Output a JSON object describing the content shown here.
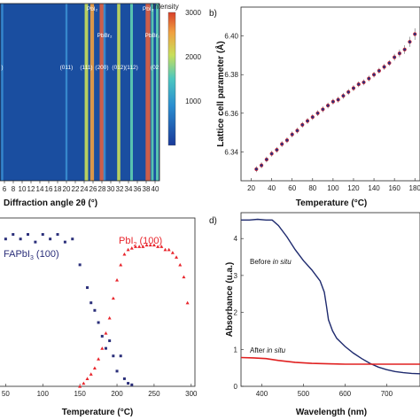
{
  "chart_data": [
    {
      "type": "heatmap",
      "xlabel": "Diffraction angle 2θ (°)",
      "xticks": [
        6,
        8,
        10,
        12,
        14,
        16,
        18,
        20,
        22,
        24,
        26,
        28,
        30,
        32,
        34,
        36,
        38,
        40
      ],
      "xlim": [
        5,
        41
      ],
      "colorbar": {
        "title": "Intensity",
        "ticks": [
          1000,
          2000,
          3000
        ],
        "range": [
          0,
          3000
        ]
      },
      "peaks": [
        {
          "angle": 20.0,
          "label": "(011)",
          "intensity": 300
        },
        {
          "angle": 24.5,
          "label": "(111)",
          "intensity": 1700
        },
        {
          "angle": 25.8,
          "label": "PbI₂",
          "intensity": 2000
        },
        {
          "angle": 28.0,
          "label": "(200)",
          "intensity": 2800
        },
        {
          "angle": 28.6,
          "label": "PbBr₂",
          "intensity": 500
        },
        {
          "angle": 31.8,
          "label": "(012)",
          "intensity": 1400
        },
        {
          "angle": 34.7,
          "label": "(112)",
          "intensity": 900
        },
        {
          "angle": 38.4,
          "label": "PbI₂",
          "intensity": 3000
        },
        {
          "angle": 39.4,
          "label": "PbBr₂",
          "intensity": 700
        },
        {
          "angle": 40.5,
          "label": "(022)",
          "intensity": 1000
        },
        {
          "angle": 5.5,
          "label": ")",
          "intensity": 300
        }
      ]
    },
    {
      "type": "scatter",
      "panel": "b)",
      "xlabel": "Temperature (°C)",
      "ylabel": "Lattice cell parameter (Å)",
      "xticks": [
        20,
        40,
        60,
        80,
        100,
        120,
        140,
        160,
        180
      ],
      "yticks": [
        6.34,
        6.36,
        6.38,
        6.4
      ],
      "xlim": [
        10,
        185
      ],
      "ylim": [
        6.325,
        6.415
      ],
      "x": [
        25,
        30,
        35,
        40,
        45,
        50,
        55,
        60,
        65,
        70,
        75,
        80,
        85,
        90,
        95,
        100,
        105,
        110,
        115,
        120,
        125,
        130,
        135,
        140,
        145,
        150,
        155,
        160,
        165,
        170,
        175,
        180
      ],
      "y": [
        6.331,
        6.333,
        6.336,
        6.339,
        6.341,
        6.344,
        6.346,
        6.349,
        6.351,
        6.354,
        6.356,
        6.358,
        6.36,
        6.362,
        6.364,
        6.366,
        6.367,
        6.369,
        6.371,
        6.373,
        6.375,
        6.376,
        6.378,
        6.38,
        6.382,
        6.384,
        6.386,
        6.389,
        6.391,
        6.393,
        6.397,
        6.401
      ],
      "errors": [
        0.0015,
        0.0015,
        0.0015,
        0.0015,
        0.0015,
        0.0015,
        0.0015,
        0.0015,
        0.0015,
        0.0015,
        0.0015,
        0.0015,
        0.0015,
        0.0015,
        0.0015,
        0.0015,
        0.0015,
        0.0015,
        0.0015,
        0.0015,
        0.0015,
        0.0015,
        0.0015,
        0.0015,
        0.0015,
        0.0015,
        0.0015,
        0.0018,
        0.002,
        0.0022,
        0.0026,
        0.003
      ]
    },
    {
      "type": "scatter",
      "xlabel": "Temperature (°C)",
      "xticks": [
        50,
        100,
        150,
        200,
        250,
        300
      ],
      "xlim": [
        40,
        305
      ],
      "ylim": [
        0,
        1.05
      ],
      "series": [
        {
          "name": "FAPbI₃ (100)",
          "color": "#2b2f7a",
          "x": [
            40,
            50,
            60,
            70,
            80,
            90,
            100,
            110,
            120,
            130,
            140,
            150,
            160,
            165,
            170,
            175,
            180,
            185,
            190,
            195,
            200,
            205,
            210,
            215,
            220
          ],
          "y": [
            1.0,
            0.97,
            1.0,
            0.97,
            1.0,
            0.95,
            1.0,
            0.97,
            1.0,
            0.95,
            0.97,
            0.8,
            0.65,
            0.55,
            0.5,
            0.42,
            0.33,
            0.25,
            0.3,
            0.2,
            0.1,
            0.2,
            0.05,
            0.02,
            0.01
          ]
        },
        {
          "name": "PbI₂ (100)",
          "color": "#e8252c",
          "x": [
            150,
            155,
            160,
            165,
            170,
            175,
            180,
            185,
            190,
            195,
            200,
            205,
            210,
            215,
            220,
            225,
            230,
            235,
            240,
            245,
            250,
            255,
            260,
            265,
            270,
            275,
            280,
            285,
            290,
            295
          ],
          "y": [
            0.0,
            0.02,
            0.05,
            0.08,
            0.12,
            0.18,
            0.25,
            0.35,
            0.45,
            0.58,
            0.7,
            0.8,
            0.87,
            0.9,
            0.91,
            0.92,
            0.92,
            0.92,
            0.93,
            0.93,
            0.93,
            0.92,
            0.92,
            0.9,
            0.9,
            0.88,
            0.85,
            0.8,
            0.72,
            0.55
          ]
        }
      ]
    },
    {
      "type": "line",
      "panel": "d)",
      "xlabel": "Wavelength (nm)",
      "ylabel": "Absorbance (u.a.)",
      "xticks": [
        400,
        500,
        600,
        700
      ],
      "yticks": [
        0,
        1,
        2,
        3,
        4
      ],
      "xlim": [
        350,
        780
      ],
      "ylim": [
        0,
        4.7
      ],
      "series": [
        {
          "name": "Before in situ",
          "color": "#1e2a6e",
          "x": [
            350,
            370,
            390,
            410,
            425,
            440,
            460,
            480,
            500,
            520,
            540,
            550,
            555,
            560,
            570,
            580,
            600,
            620,
            640,
            660,
            680,
            700,
            720,
            740,
            760,
            780
          ],
          "y": [
            4.5,
            4.5,
            4.52,
            4.5,
            4.5,
            4.35,
            4.05,
            3.7,
            3.4,
            3.15,
            2.85,
            2.55,
            2.2,
            1.8,
            1.5,
            1.3,
            1.08,
            0.9,
            0.75,
            0.62,
            0.52,
            0.45,
            0.4,
            0.37,
            0.35,
            0.34
          ]
        },
        {
          "name": "After in situ",
          "color": "#e02020",
          "x": [
            350,
            380,
            410,
            440,
            480,
            520,
            560,
            600,
            640,
            680,
            720,
            760,
            780
          ],
          "y": [
            0.78,
            0.77,
            0.75,
            0.7,
            0.65,
            0.62,
            0.61,
            0.6,
            0.6,
            0.6,
            0.6,
            0.6,
            0.6
          ]
        }
      ]
    }
  ],
  "labels": {
    "colorbar_title": "Intensity",
    "panel_b": "b)",
    "panel_d": "d)",
    "heat_xlabel": "Diffraction angle 2θ (°)",
    "b_xlabel": "Temperature (°C)",
    "b_ylabel": "Lattice cell parameter (Å)",
    "c_xlabel": "Temperature (°C)",
    "c_label_blue": "FAPbI",
    "c_label_blue_sub": "3",
    "c_label_blue_tail": " (100)",
    "c_label_red": "PbI",
    "c_label_red_sub": "2",
    "c_label_red_tail": " (100)",
    "d_xlabel": "Wavelength (nm)",
    "d_ylabel": "Absorbance (u.a.)",
    "d_before": "Before ",
    "d_before_it": "in situ",
    "d_after": "After ",
    "d_after_it": "in situ"
  }
}
